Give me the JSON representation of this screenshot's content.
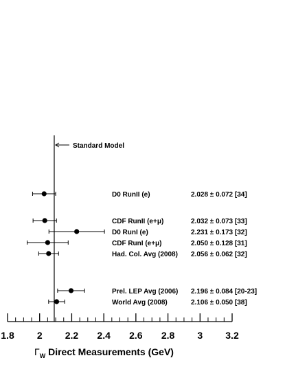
{
  "chart_data": {
    "type": "scatter",
    "xlabel_symbol": "Γ",
    "xlabel_subscript": "W",
    "xlabel": "Direct Measurements (GeV)",
    "xlim": [
      1.8,
      3.2
    ],
    "xticks": [
      "1.8",
      "2",
      "2.2",
      "2.4",
      "2.6",
      "2.8",
      "3",
      "3.2"
    ],
    "reference": {
      "label": "Standard Model",
      "value": 2.091
    },
    "points": [
      {
        "label": "D0 RunII (e)",
        "value": 2.028,
        "error": 0.072,
        "text": "2.028 ± 0.072 [34]"
      },
      {
        "label": "CDF RunII (e+μ)",
        "value": 2.032,
        "error": 0.073,
        "text": "2.032 ± 0.073 [33]"
      },
      {
        "label": "D0 RunI (e)",
        "value": 2.231,
        "error": 0.173,
        "text": "2.231 ± 0.173 [32]"
      },
      {
        "label": "CDF RunI (e+μ)",
        "value": 2.05,
        "error": 0.128,
        "text": "2.050 ± 0.128 [31]"
      },
      {
        "label": "Had. Col. Avg (2008)",
        "value": 2.056,
        "error": 0.062,
        "text": "2.056 ± 0.062 [32]"
      },
      {
        "label": "Prel. LEP Avg (2006)",
        "value": 2.196,
        "error": 0.084,
        "text": "2.196 ± 0.084 [20-23]"
      },
      {
        "label": "World Avg (2008)",
        "value": 2.106,
        "error": 0.05,
        "text": "2.106 ± 0.050 [38]"
      }
    ]
  }
}
